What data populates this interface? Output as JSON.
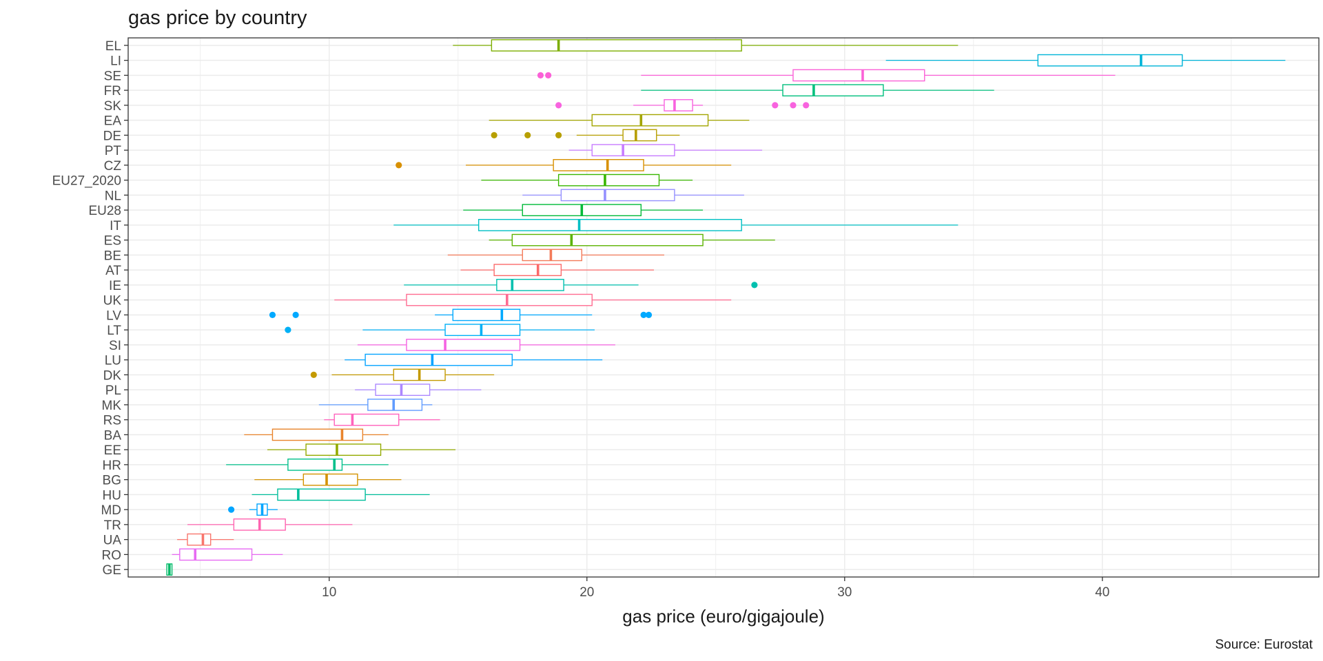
{
  "chart_data": {
    "type": "boxplot",
    "orientation": "horizontal",
    "title": "gas price by country",
    "xlabel": "gas price (euro/gigajoule)",
    "ylabel": "",
    "caption": "Source: Eurostat",
    "xlim": [
      2.2,
      48.4
    ],
    "xticks": [
      10,
      20,
      30,
      40
    ],
    "grid": true,
    "legend": "none",
    "categories": [
      "EL",
      "LI",
      "SE",
      "FR",
      "SK",
      "EA",
      "DE",
      "PT",
      "CZ",
      "EU27_2020",
      "NL",
      "EU28",
      "IT",
      "ES",
      "BE",
      "AT",
      "IE",
      "UK",
      "LV",
      "LT",
      "SI",
      "LU",
      "DK",
      "PL",
      "MK",
      "RS",
      "BA",
      "EE",
      "HR",
      "BG",
      "HU",
      "MD",
      "TR",
      "UA",
      "RO",
      "GE"
    ],
    "series": [
      {
        "category": "EL",
        "color": "#7CAE00",
        "min": 14.8,
        "q1": 16.3,
        "median": 18.9,
        "q3": 26.0,
        "max": 34.4,
        "outliers": []
      },
      {
        "category": "LI",
        "color": "#00B4D8",
        "min": 31.6,
        "q1": 37.5,
        "median": 41.5,
        "q3": 43.1,
        "max": 47.1,
        "outliers": []
      },
      {
        "category": "SE",
        "color": "#FB61D7",
        "min": 22.1,
        "q1": 28.0,
        "median": 30.7,
        "q3": 33.1,
        "max": 40.5,
        "outliers": [
          18.2,
          18.5
        ]
      },
      {
        "category": "FR",
        "color": "#00BF7D",
        "min": 22.1,
        "q1": 27.6,
        "median": 28.8,
        "q3": 31.5,
        "max": 35.8,
        "outliers": []
      },
      {
        "category": "SK",
        "color": "#F863DF",
        "min": 21.8,
        "q1": 23.0,
        "median": 23.4,
        "q3": 24.1,
        "max": 24.5,
        "outliers": [
          18.9,
          27.3,
          28.0,
          28.5
        ]
      },
      {
        "category": "EA",
        "color": "#A3A500",
        "min": 16.2,
        "q1": 20.2,
        "median": 22.1,
        "q3": 24.7,
        "max": 26.3,
        "outliers": []
      },
      {
        "category": "DE",
        "color": "#B79F00",
        "min": 19.6,
        "q1": 21.4,
        "median": 21.9,
        "q3": 22.7,
        "max": 23.6,
        "outliers": [
          16.4,
          17.7,
          18.9
        ]
      },
      {
        "category": "PT",
        "color": "#C77CFF",
        "min": 19.3,
        "q1": 20.2,
        "median": 21.4,
        "q3": 23.4,
        "max": 26.8,
        "outliers": []
      },
      {
        "category": "CZ",
        "color": "#D89000",
        "min": 15.3,
        "q1": 18.7,
        "median": 20.8,
        "q3": 22.2,
        "max": 25.6,
        "outliers": [
          12.7
        ]
      },
      {
        "category": "EU27_2020",
        "color": "#39B600",
        "min": 15.9,
        "q1": 18.9,
        "median": 20.7,
        "q3": 22.8,
        "max": 24.1,
        "outliers": []
      },
      {
        "category": "NL",
        "color": "#9590FF",
        "min": 17.5,
        "q1": 19.0,
        "median": 20.7,
        "q3": 23.4,
        "max": 26.1,
        "outliers": []
      },
      {
        "category": "EU28",
        "color": "#00BA38",
        "min": 15.2,
        "q1": 17.5,
        "median": 19.8,
        "q3": 22.1,
        "max": 24.5,
        "outliers": []
      },
      {
        "category": "IT",
        "color": "#00BFC4",
        "min": 12.5,
        "q1": 15.8,
        "median": 19.7,
        "q3": 26.0,
        "max": 34.4,
        "outliers": []
      },
      {
        "category": "ES",
        "color": "#5BB300",
        "min": 16.2,
        "q1": 17.1,
        "median": 19.4,
        "q3": 24.5,
        "max": 27.3,
        "outliers": []
      },
      {
        "category": "BE",
        "color": "#F37B59",
        "min": 14.6,
        "q1": 17.5,
        "median": 18.6,
        "q3": 19.8,
        "max": 23.0,
        "outliers": []
      },
      {
        "category": "AT",
        "color": "#FB6A6A",
        "min": 15.1,
        "q1": 16.4,
        "median": 18.1,
        "q3": 19.0,
        "max": 22.6,
        "outliers": []
      },
      {
        "category": "IE",
        "color": "#00C0AF",
        "min": 12.9,
        "q1": 16.5,
        "median": 17.1,
        "q3": 19.1,
        "max": 22.0,
        "outliers": [
          26.5
        ]
      },
      {
        "category": "UK",
        "color": "#FF6C91",
        "min": 10.2,
        "q1": 13.0,
        "median": 16.9,
        "q3": 20.2,
        "max": 25.6,
        "outliers": []
      },
      {
        "category": "LV",
        "color": "#00A9FF",
        "min": 14.1,
        "q1": 14.8,
        "median": 16.7,
        "q3": 17.4,
        "max": 20.2,
        "outliers": [
          7.8,
          8.7,
          22.2,
          22.4
        ]
      },
      {
        "category": "LT",
        "color": "#00B0F6",
        "min": 11.3,
        "q1": 14.5,
        "median": 15.9,
        "q3": 17.4,
        "max": 20.3,
        "outliers": [
          8.4
        ]
      },
      {
        "category": "SI",
        "color": "#F564E3",
        "min": 11.1,
        "q1": 13.0,
        "median": 14.5,
        "q3": 17.4,
        "max": 21.1,
        "outliers": []
      },
      {
        "category": "LU",
        "color": "#06A4FF",
        "min": 10.6,
        "q1": 11.4,
        "median": 14.0,
        "q3": 17.1,
        "max": 20.6,
        "outliers": []
      },
      {
        "category": "DK",
        "color": "#C49A00",
        "min": 10.1,
        "q1": 12.5,
        "median": 13.5,
        "q3": 14.5,
        "max": 16.4,
        "outliers": [
          9.4
        ]
      },
      {
        "category": "PL",
        "color": "#AC88FF",
        "min": 11.0,
        "q1": 11.8,
        "median": 12.8,
        "q3": 13.9,
        "max": 15.9,
        "outliers": []
      },
      {
        "category": "MK",
        "color": "#619CFF",
        "min": 9.6,
        "q1": 11.5,
        "median": 12.5,
        "q3": 13.6,
        "max": 14.0,
        "outliers": []
      },
      {
        "category": "RS",
        "color": "#FF62BC",
        "min": 9.8,
        "q1": 10.2,
        "median": 10.9,
        "q3": 12.7,
        "max": 14.3,
        "outliers": []
      },
      {
        "category": "BA",
        "color": "#E9842C",
        "min": 6.7,
        "q1": 7.8,
        "median": 10.5,
        "q3": 11.3,
        "max": 12.3,
        "outliers": []
      },
      {
        "category": "EE",
        "color": "#93AA00",
        "min": 7.6,
        "q1": 9.1,
        "median": 10.3,
        "q3": 12.0,
        "max": 14.9,
        "outliers": []
      },
      {
        "category": "HR",
        "color": "#00C08B",
        "min": 6.0,
        "q1": 8.4,
        "median": 10.2,
        "q3": 10.5,
        "max": 12.3,
        "outliers": []
      },
      {
        "category": "BG",
        "color": "#D39200",
        "min": 7.1,
        "q1": 9.0,
        "median": 9.9,
        "q3": 11.1,
        "max": 12.8,
        "outliers": []
      },
      {
        "category": "HU",
        "color": "#00BE9C",
        "min": 7.0,
        "q1": 8.0,
        "median": 8.8,
        "q3": 11.4,
        "max": 13.9,
        "outliers": []
      },
      {
        "category": "MD",
        "color": "#00A5FF",
        "min": 6.9,
        "q1": 7.2,
        "median": 7.4,
        "q3": 7.6,
        "max": 8.0,
        "outliers": [
          6.2
        ]
      },
      {
        "category": "TR",
        "color": "#FF64B0",
        "min": 4.5,
        "q1": 6.3,
        "median": 7.3,
        "q3": 8.3,
        "max": 10.9,
        "outliers": []
      },
      {
        "category": "UA",
        "color": "#F8766D",
        "min": 4.1,
        "q1": 4.5,
        "median": 5.1,
        "q3": 5.4,
        "max": 6.3,
        "outliers": []
      },
      {
        "category": "RO",
        "color": "#E76BF3",
        "min": 3.9,
        "q1": 4.2,
        "median": 4.8,
        "q3": 7.0,
        "max": 8.2,
        "outliers": []
      },
      {
        "category": "GE",
        "color": "#00BA68",
        "min": 3.7,
        "q1": 3.7,
        "median": 3.8,
        "q3": 3.9,
        "max": 3.9,
        "outliers": []
      }
    ]
  }
}
